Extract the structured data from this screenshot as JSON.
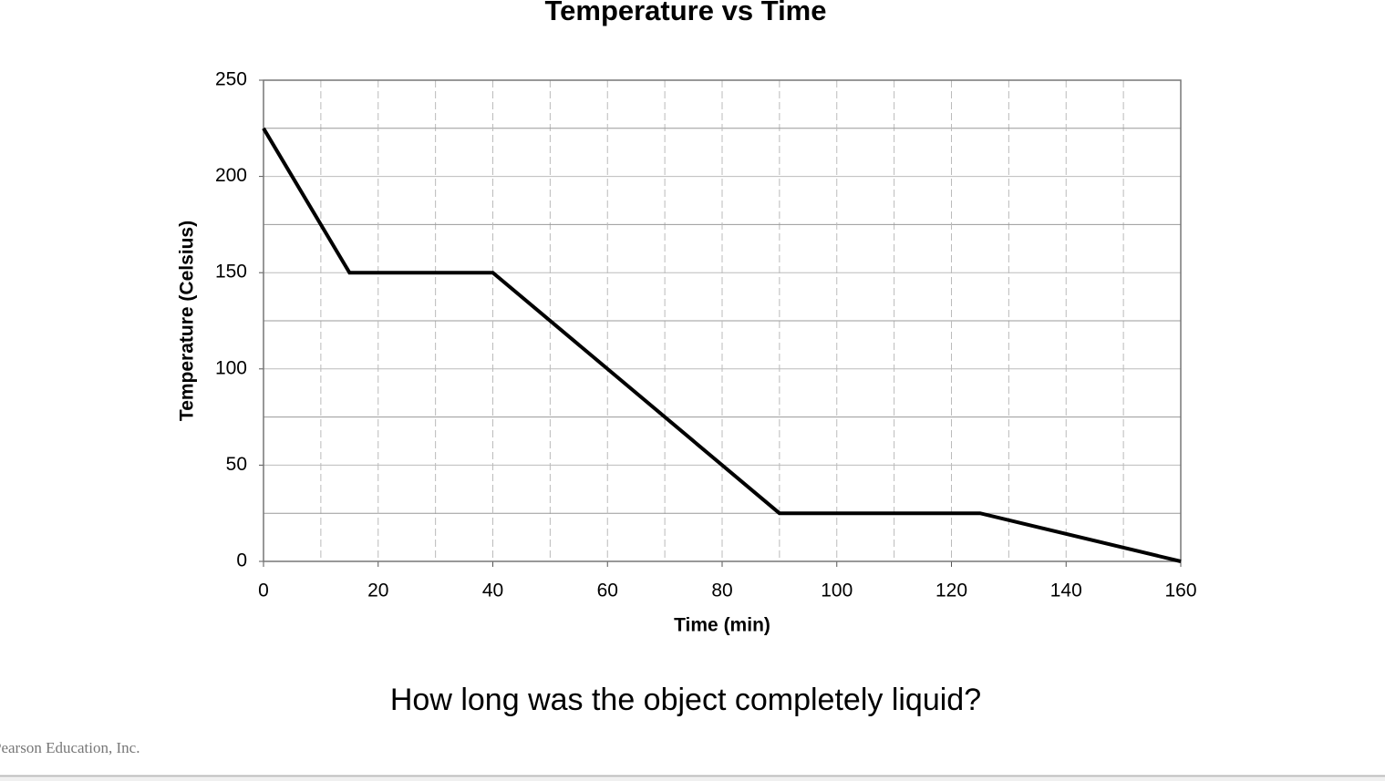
{
  "chart_data": {
    "type": "line",
    "title": "Temperature vs Time",
    "x_label": "Time (min)",
    "y_label": "Temperature (Celsius)",
    "x": [
      0,
      15,
      40,
      90,
      125,
      160
    ],
    "series": [
      {
        "color": "#000000",
        "values": [
          225,
          150,
          150,
          25,
          25,
          0
        ]
      }
    ],
    "xlim": [
      0,
      160
    ],
    "xticks": [
      0,
      20,
      40,
      60,
      80,
      100,
      120,
      140,
      160
    ],
    "ylim": [
      0,
      250
    ],
    "yticks": [
      0,
      50,
      100,
      150,
      200,
      250
    ],
    "grid": true
  },
  "question": "How long was the object completely liquid?",
  "footer": "Pearson Education, Inc."
}
